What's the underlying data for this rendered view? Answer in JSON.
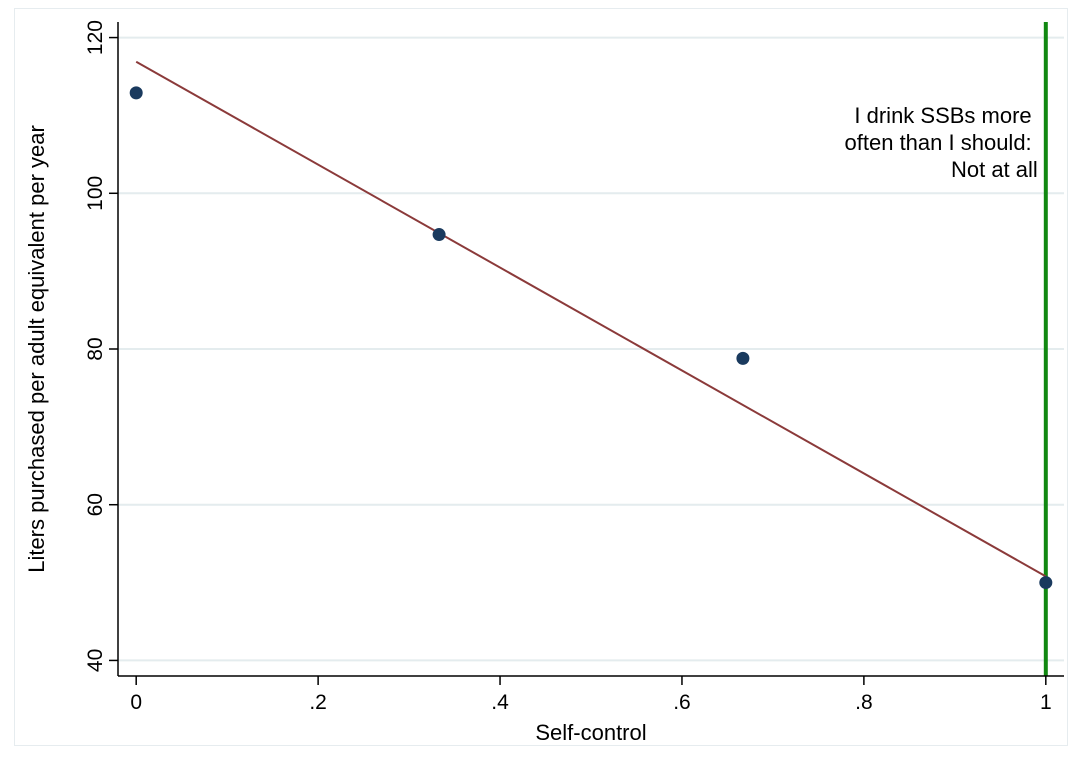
{
  "chart_data": {
    "type": "scatter",
    "xlabel": "Self-control",
    "ylabel": "Liters purchased per adult equivalent per year",
    "xlim": [
      -0.02,
      1.02
    ],
    "ylim": [
      38,
      122
    ],
    "xticks": [
      0,
      0.2,
      0.4,
      0.6,
      0.8,
      1
    ],
    "xtick_labels": [
      "0",
      ".2",
      ".4",
      ".6",
      ".8",
      "1"
    ],
    "yticks": [
      40,
      60,
      80,
      100,
      120
    ],
    "ytick_labels": [
      "40",
      "60",
      "80",
      "100",
      "120"
    ],
    "grid": "horizontal",
    "series": [
      {
        "kind": "points",
        "x": [
          0,
          0.333,
          0.667,
          1
        ],
        "y": [
          112.9,
          94.7,
          78.8,
          50.0
        ],
        "color": "#1a3a5e"
      },
      {
        "kind": "fit-line",
        "x": [
          0,
          1
        ],
        "y": [
          116.9,
          50.8
        ],
        "color": "#8b3a3a"
      }
    ],
    "reference_line": {
      "x": 1,
      "color": "#118811"
    },
    "annotation": {
      "lines": [
        "I drink SSBs more",
        "often than I should:",
        "Not at all"
      ]
    }
  }
}
